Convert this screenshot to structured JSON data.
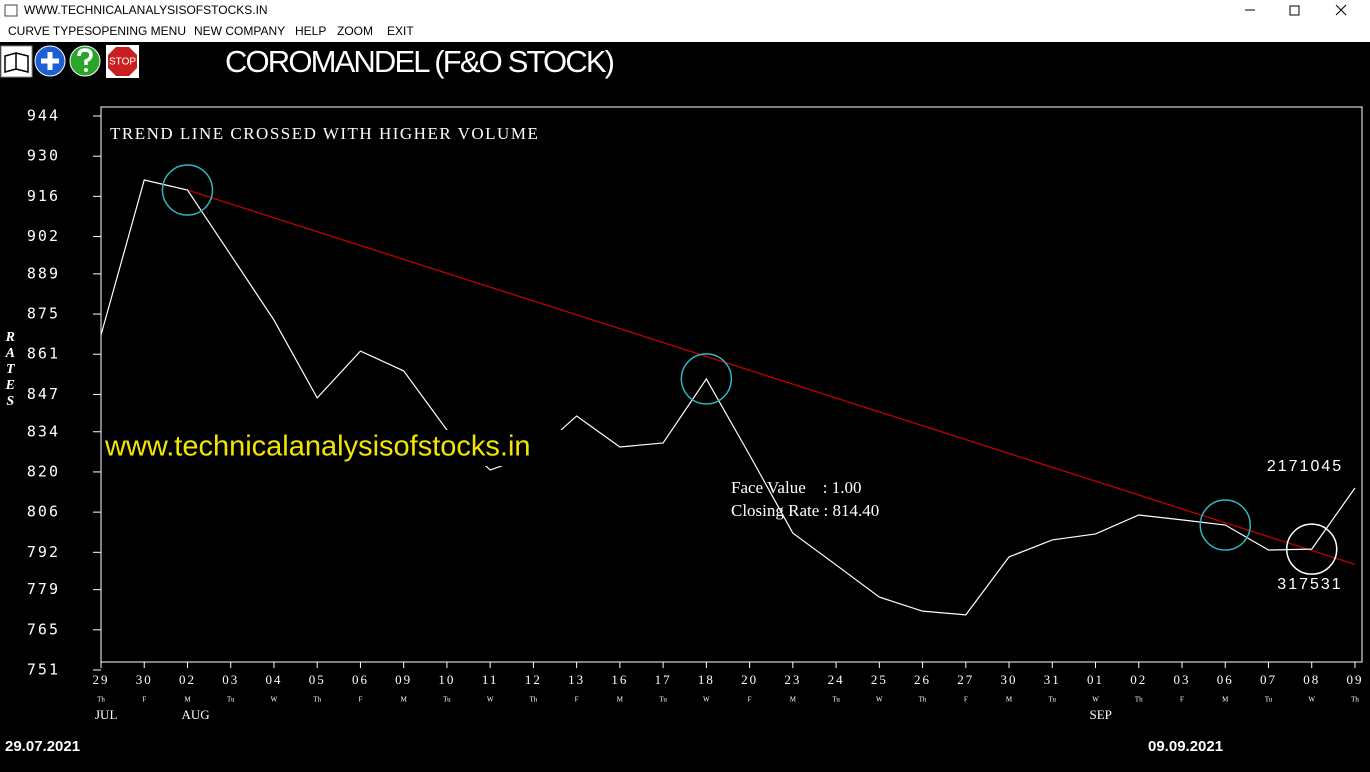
{
  "window": {
    "title": "WWW.TECHNICALANALYSISOFSTOCKS.IN"
  },
  "menu": [
    "CURVE TYPES",
    "OPENING MENU",
    "NEW COMPANY",
    "HELP",
    "ZOOM",
    "EXIT"
  ],
  "toolbar": {
    "stop_label": "STOP"
  },
  "chart_data": {
    "type": "line",
    "title": "COROMANDEL (F&O STOCK)",
    "subtitle": "TREND LINE CROSSED WITH HIGHER VOLUME",
    "watermark": "www.technicalanalysisofstocks.in",
    "y_label": "RATES",
    "categories": [
      "29",
      "30",
      "02",
      "03",
      "04",
      "05",
      "06",
      "09",
      "10",
      "11",
      "12",
      "13",
      "16",
      "17",
      "18",
      "20",
      "23",
      "24",
      "25",
      "26",
      "27",
      "30",
      "31",
      "01",
      "02",
      "03",
      "06",
      "07",
      "08",
      "09"
    ],
    "weekdays": [
      "Th",
      "F",
      "M",
      "Tu",
      "W",
      "Th",
      "F",
      "M",
      "Tu",
      "W",
      "Th",
      "F",
      "M",
      "Tu",
      "W",
      "F",
      "M",
      "Tu",
      "W",
      "Th",
      "F",
      "M",
      "Tu",
      "W",
      "Th",
      "F",
      "M",
      "Tu",
      "W",
      "Th"
    ],
    "months": [
      "JUL",
      null,
      "AUG",
      null,
      null,
      null,
      null,
      null,
      null,
      null,
      null,
      null,
      null,
      null,
      null,
      null,
      null,
      null,
      null,
      null,
      null,
      null,
      null,
      "SEP",
      null,
      null,
      null,
      null,
      null,
      null
    ],
    "values": [
      867.7,
      921.7,
      918.2,
      895.6,
      872.9,
      845.8,
      862.1,
      855.2,
      834.6,
      820.7,
      825.9,
      839.5,
      828.7,
      830.1,
      852.4,
      825.9,
      798.7,
      787.6,
      776.4,
      771.5,
      770.2,
      790.4,
      796.3,
      798.4,
      805.0,
      803.3,
      801.5,
      792.8,
      793.1,
      814.4
    ],
    "color": "#ffffff",
    "ylim": [
      751,
      944
    ],
    "yticks": [
      944,
      930,
      916,
      902,
      889,
      875,
      861,
      847,
      834,
      820,
      806,
      792,
      779,
      765,
      751
    ],
    "trend_line": {
      "start_index": 2,
      "start_value": 918.2,
      "end_index": 29,
      "end_value": 787.8,
      "color": "#c00000"
    },
    "highlights": [
      {
        "index": 2,
        "color": "#2fb8c0"
      },
      {
        "index": 14,
        "color": "#2fb8c0"
      },
      {
        "index": 26,
        "color": "#2fb8c0"
      },
      {
        "index": 28,
        "color": "#ffffff"
      }
    ],
    "annotations": [
      "Face Value    : 1.00",
      "Closing Rate : 814.40"
    ],
    "volume_labels": [
      2171045,
      317531
    ],
    "start_date": "29.07.2021",
    "end_date": "09.09.2021"
  }
}
